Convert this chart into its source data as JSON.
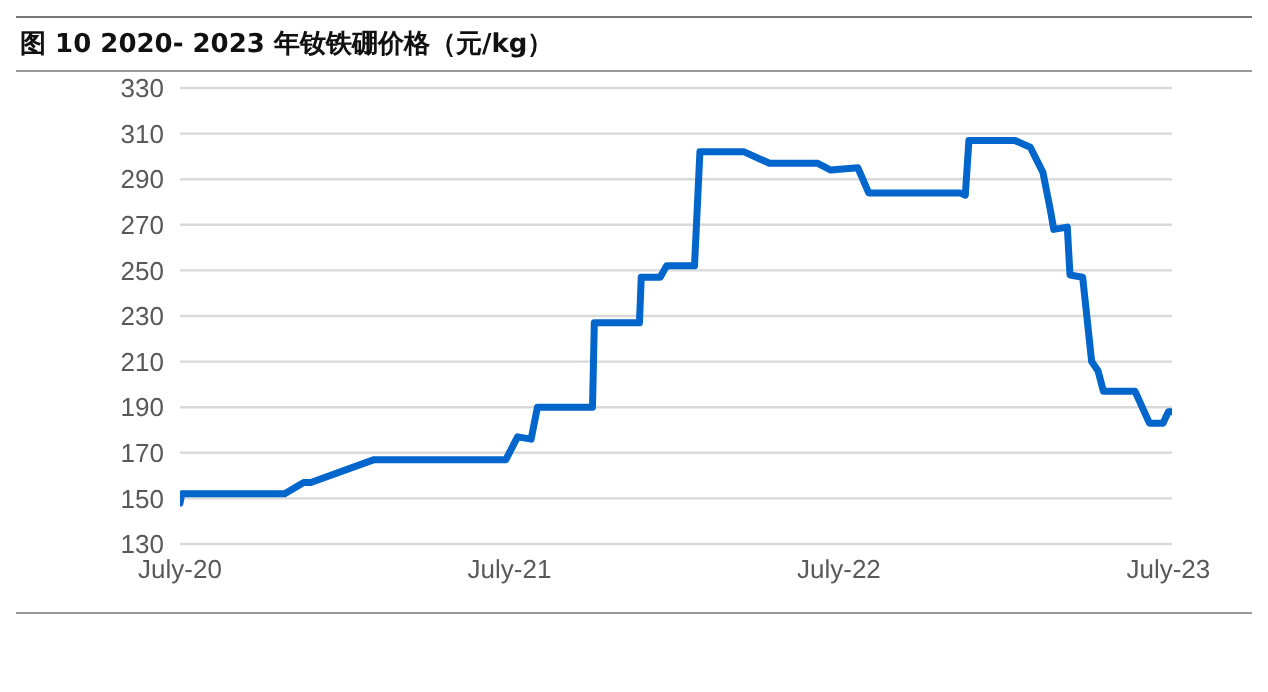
{
  "chart_data": {
    "type": "line",
    "title": "图 10 2020- 2023 年钕铁硼价格（元/kg）",
    "x": [
      "2020-07-01",
      "2020-07-03",
      "2020-10-25",
      "2020-11-15",
      "2020-11-23",
      "2021-02-01",
      "2021-06-27",
      "2021-07-10",
      "2021-07-25",
      "2021-08-01",
      "2021-10-01",
      "2021-10-03",
      "2021-11-22",
      "2021-11-24",
      "2021-12-15",
      "2021-12-22",
      "2022-01-22",
      "2022-01-28",
      "2022-03-18",
      "2022-04-15",
      "2022-06-07",
      "2022-06-22",
      "2022-07-22",
      "2022-08-03",
      "2022-11-12",
      "2022-11-18",
      "2022-11-22",
      "2023-01-12",
      "2023-01-29",
      "2023-02-12",
      "2023-02-20",
      "2023-02-24",
      "2023-03-11",
      "2023-03-14",
      "2023-03-28",
      "2023-04-07",
      "2023-04-14",
      "2023-04-20",
      "2023-05-25",
      "2023-06-10",
      "2023-06-25",
      "2023-07-01",
      "2023-07-05"
    ],
    "series": [
      {
        "color": "#0066cc",
        "values": [
          148,
          152,
          152,
          157,
          157,
          167,
          167,
          177,
          176,
          190,
          190,
          227,
          227,
          247,
          247,
          252,
          252,
          302,
          302,
          297,
          297,
          294,
          295,
          284,
          284,
          283,
          307,
          307,
          304,
          293,
          277,
          268,
          269,
          248,
          247,
          210,
          206,
          197,
          197,
          183,
          183,
          188,
          188
        ]
      }
    ],
    "xlim": [
      "2020-07-01",
      "2023-07-05"
    ],
    "xticks": [
      {
        "value": "2020-07-01",
        "label": "July-20"
      },
      {
        "value": "2021-07-01",
        "label": "July-21"
      },
      {
        "value": "2022-07-01",
        "label": "July-22"
      },
      {
        "value": "2023-07-01",
        "label": "July-23"
      }
    ],
    "ylim": [
      130,
      330
    ],
    "yticks": [
      130,
      150,
      170,
      190,
      210,
      230,
      250,
      270,
      290,
      310,
      330
    ],
    "grid": "y",
    "marker": "none",
    "line_style": "solid"
  }
}
